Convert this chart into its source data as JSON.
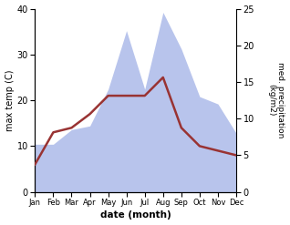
{
  "months": [
    "Jan",
    "Feb",
    "Mar",
    "Apr",
    "May",
    "Jun",
    "Jul",
    "Aug",
    "Sep",
    "Oct",
    "Nov",
    "Dec"
  ],
  "temperature": [
    6.0,
    13.0,
    14.0,
    17.0,
    21.0,
    21.0,
    21.0,
    25.0,
    14.0,
    10.0,
    9.0,
    8.0
  ],
  "precipitation": [
    6.5,
    6.5,
    8.5,
    9.0,
    14.0,
    22.0,
    14.0,
    24.5,
    19.5,
    13.0,
    12.0,
    8.0
  ],
  "temp_color": "#993333",
  "precip_color_fill": "#b8c4ec",
  "ylabel_left": "max temp (C)",
  "ylabel_right": "med. precipitation\n(kg/m2)",
  "xlabel": "date (month)",
  "ylim_left": [
    0,
    40
  ],
  "ylim_right": [
    0,
    25
  ],
  "bg_color": "#ffffff",
  "yticks_left": [
    0,
    10,
    20,
    30,
    40
  ],
  "yticks_right": [
    0,
    5,
    10,
    15,
    20,
    25
  ]
}
